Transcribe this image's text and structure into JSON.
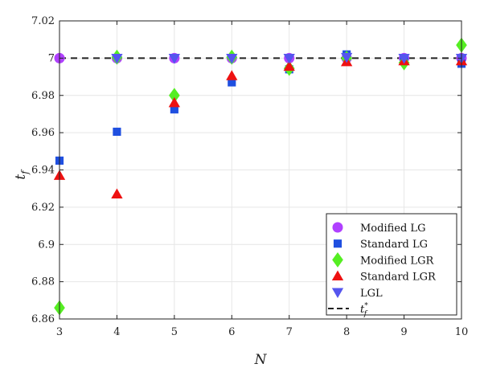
{
  "chart_data": {
    "type": "scatter",
    "title": "",
    "xlabel": "N",
    "ylabel_base": "t",
    "ylabel_sub": "f",
    "xlim": [
      3,
      10
    ],
    "ylim": [
      6.86,
      7.02
    ],
    "xticks": [
      3,
      4,
      5,
      6,
      7,
      8,
      9,
      10
    ],
    "yticks": [
      6.86,
      6.88,
      6.9,
      6.92,
      6.94,
      6.96,
      6.98,
      7,
      7.02
    ],
    "ytick_labels": [
      "6.86",
      "6.88",
      "6.9",
      "6.92",
      "6.94",
      "6.96",
      "6.98",
      "7",
      "7.02"
    ],
    "grid": true,
    "legend_position": "bottom-right",
    "reference_line": {
      "name": "t_f^*",
      "label_base": "t",
      "label_sub": "f",
      "label_sup": "*",
      "y": 7.0,
      "color": "#222222",
      "style": "dashed"
    },
    "series": [
      {
        "name": "Modified LG",
        "marker": "circle",
        "color": "#b040ff",
        "x": [
          3,
          4,
          5,
          6,
          7,
          8,
          9,
          10
        ],
        "y": [
          7.0,
          7.0,
          7.0,
          7.0,
          7.0,
          7.0,
          7.0,
          7.0
        ]
      },
      {
        "name": "Standard LG",
        "marker": "square",
        "color": "#1f4fe0",
        "x": [
          3,
          4,
          5,
          6,
          7,
          8,
          9,
          10
        ],
        "y": [
          6.945,
          6.9605,
          6.9725,
          6.987,
          6.994,
          7.002,
          6.9995,
          6.997
        ]
      },
      {
        "name": "Modified LGR",
        "marker": "diamond",
        "color": "#55ee22",
        "x": [
          3,
          4,
          5,
          6,
          7,
          8,
          9,
          10
        ],
        "y": [
          6.866,
          7.0005,
          6.98,
          7.0005,
          6.9945,
          7.0,
          6.9975,
          7.007
        ]
      },
      {
        "name": "Standard LGR",
        "marker": "triangle-up",
        "color": "#ee1111",
        "x": [
          3,
          4,
          5,
          6,
          7,
          8,
          9,
          10
        ],
        "y": [
          6.937,
          6.927,
          6.976,
          6.9905,
          6.9955,
          6.998,
          6.9985,
          6.9985
        ]
      },
      {
        "name": "LGL",
        "marker": "triangle-down",
        "color": "#5555ee",
        "x": [
          4,
          5,
          6,
          7,
          8,
          9,
          10
        ],
        "y": [
          7.0,
          7.0,
          7.0,
          7.0,
          7.0005,
          7.0,
          7.0
        ]
      }
    ]
  }
}
